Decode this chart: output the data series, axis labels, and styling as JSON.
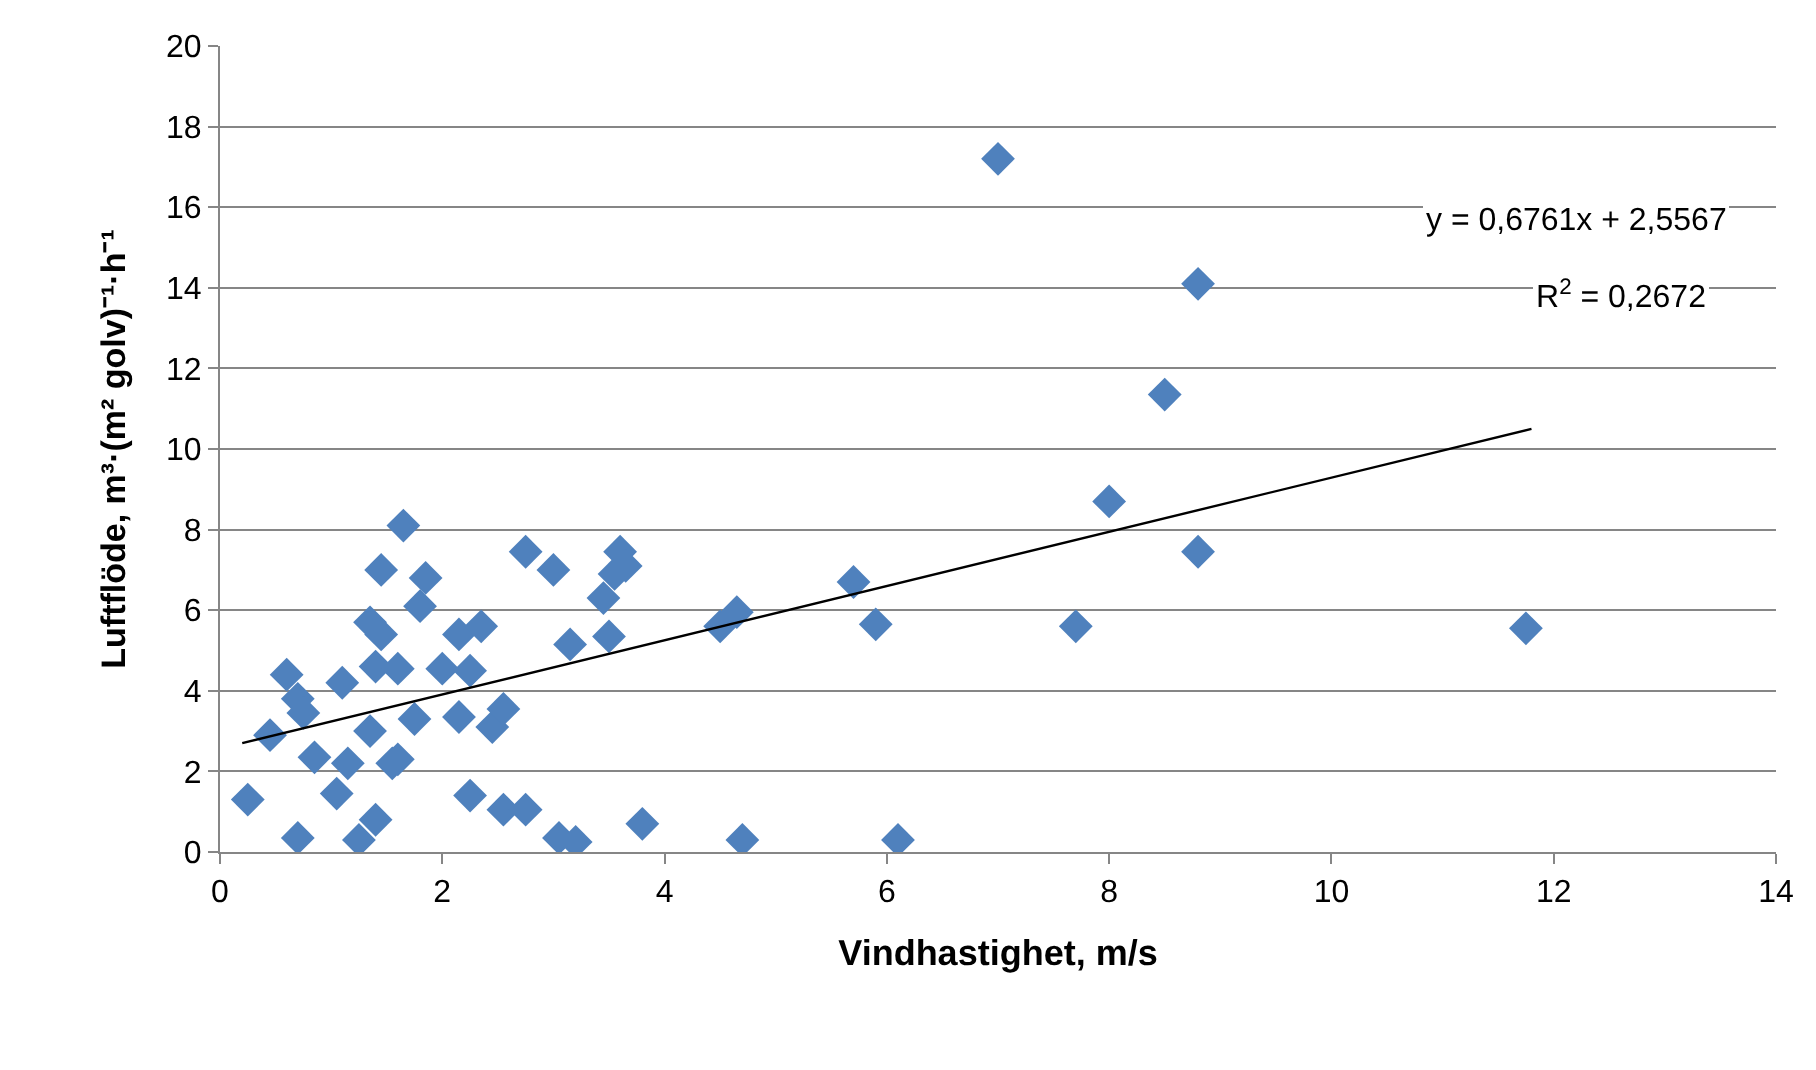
{
  "chart_data": {
    "type": "scatter",
    "xlabel": "Vindhastighet, m/s",
    "ylabel": "Luftflöde, m³·(m² golv)⁻¹·h⁻¹",
    "xlim": [
      0,
      14
    ],
    "xticks": [
      0,
      2,
      4,
      6,
      8,
      10,
      12,
      14
    ],
    "ylim": [
      0,
      20
    ],
    "yticks": [
      0,
      2,
      4,
      6,
      8,
      10,
      12,
      14,
      16,
      18,
      20
    ],
    "grid": "y",
    "marker": "diamond",
    "annotations": [
      "y = 0,6761x + 2,5567",
      "R$^{2}$ = 0,2672"
    ],
    "series": [
      {
        "color": "#4f81bd",
        "x": [
          0.25,
          0.45,
          0.6,
          0.7,
          0.75,
          0.7,
          0.85,
          1.1,
          1.05,
          1.15,
          1.25,
          1.35,
          1.35,
          1.4,
          1.45,
          1.45,
          1.4,
          1.55,
          1.6,
          1.6,
          1.65,
          1.75,
          1.8,
          1.85,
          2.0,
          2.15,
          2.15,
          2.25,
          2.25,
          2.35,
          2.45,
          2.55,
          2.55,
          2.75,
          2.75,
          3.0,
          3.05,
          3.15,
          3.2,
          3.45,
          3.5,
          3.55,
          3.6,
          3.65,
          3.8,
          4.5,
          4.65,
          4.7,
          5.7,
          5.9,
          6.1,
          7.0,
          7.7,
          8.0,
          8.5,
          8.8,
          8.8,
          11.75
        ],
        "values": [
          1.3,
          2.9,
          4.4,
          3.8,
          3.45,
          0.35,
          2.35,
          4.2,
          1.45,
          2.2,
          0.3,
          3.0,
          5.7,
          4.6,
          5.4,
          7.0,
          0.8,
          2.2,
          2.3,
          4.55,
          8.1,
          3.3,
          6.1,
          6.8,
          4.55,
          5.4,
          3.35,
          4.5,
          1.4,
          5.6,
          3.1,
          3.55,
          1.05,
          7.45,
          1.05,
          7.0,
          0.35,
          5.15,
          0.25,
          6.3,
          5.35,
          6.9,
          7.45,
          7.1,
          0.7,
          5.6,
          5.95,
          0.3,
          6.7,
          5.65,
          0.3,
          17.2,
          5.6,
          8.7,
          11.35,
          14.1,
          7.45,
          5.55
        ]
      },
      {
        "type": "line",
        "color": "#000000",
        "marker": "none",
        "x": [
          0.2,
          11.8
        ],
        "values": [
          2.7,
          10.5
        ]
      }
    ]
  }
}
